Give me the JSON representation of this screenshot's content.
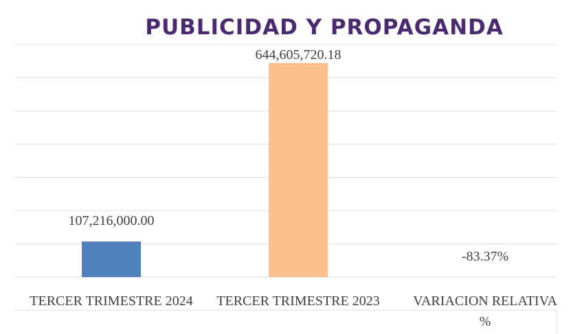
{
  "chart_data": {
    "type": "bar",
    "title": "PUBLICIDAD Y PROPAGANDA",
    "categories": [
      "TERCER TRIMESTRE 2024",
      "TERCER TRIMESTRE 2023",
      "VARIACION RELATIVA %"
    ],
    "values": [
      107216000,
      644605720.18,
      -83.37
    ],
    "value_labels": [
      "107,216,000.00",
      "644,605,720.18",
      "-83.37%"
    ],
    "colors": [
      "#4f81bd",
      "#fac090",
      "#9bbb59"
    ],
    "ylim": [
      0,
      700000000
    ],
    "yticks": [
      0,
      100000000,
      200000000,
      300000000,
      400000000,
      500000000,
      600000000,
      700000000
    ],
    "grid": true
  }
}
